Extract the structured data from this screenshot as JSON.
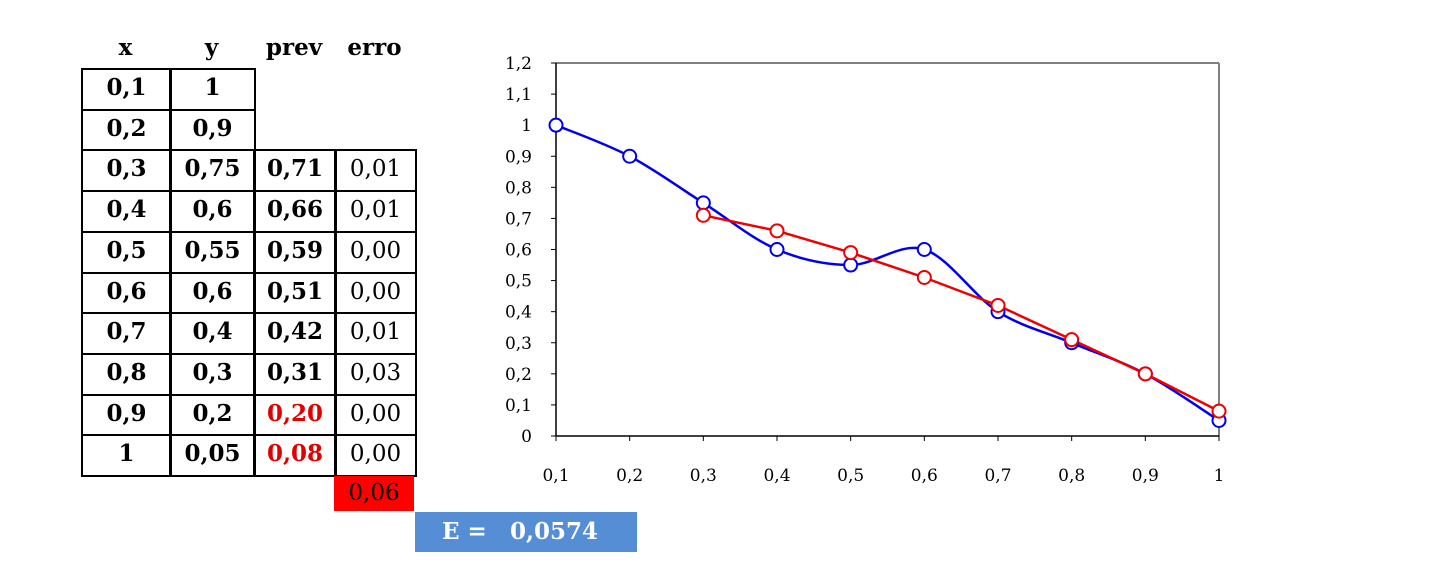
{
  "table": {
    "headers": [
      "x",
      "y",
      "prev",
      "erro"
    ],
    "rows": [
      {
        "x": "0,1",
        "y": "1",
        "prev": "",
        "erro": "",
        "prev_color": ""
      },
      {
        "x": "0,2",
        "y": "0,9",
        "prev": "",
        "erro": "",
        "prev_color": ""
      },
      {
        "x": "0,3",
        "y": "0,75",
        "prev": "0,71",
        "erro": "0,01",
        "prev_color": "#000000"
      },
      {
        "x": "0,4",
        "y": "0,6",
        "prev": "0,66",
        "erro": "0,01",
        "prev_color": "#000000"
      },
      {
        "x": "0,5",
        "y": "0,55",
        "prev": "0,59",
        "erro": "0,00",
        "prev_color": "#000000"
      },
      {
        "x": "0,6",
        "y": "0,6",
        "prev": "0,51",
        "erro": "0,00",
        "prev_color": "#000000"
      },
      {
        "x": "0,7",
        "y": "0,4",
        "prev": "0,42",
        "erro": "0,01",
        "prev_color": "#000000"
      },
      {
        "x": "0,8",
        "y": "0,3",
        "prev": "0,31",
        "erro": "0,03",
        "prev_color": "#000000"
      },
      {
        "x": "0,9",
        "y": "0,2",
        "prev": "0,20",
        "erro": "0,00",
        "prev_color": "#e00000"
      },
      {
        "x": "1",
        "y": "0,05",
        "prev": "0,08",
        "erro": "0,00",
        "prev_color": "#e00000"
      }
    ],
    "error_sum": "0,06",
    "error_sum_color": "#ff0000"
  },
  "result": {
    "label": "E =",
    "value": "0,0574",
    "color": "#558ed5"
  },
  "chart_data": {
    "type": "line",
    "x": [
      0.1,
      0.2,
      0.3,
      0.4,
      0.5,
      0.6,
      0.7,
      0.8,
      0.9,
      1
    ],
    "x_tick_labels": [
      "0,1",
      "0,2",
      "0,3",
      "0,4",
      "0,5",
      "0,6",
      "0,7",
      "0,8",
      "0,9",
      "1"
    ],
    "y_tick_labels": [
      "0",
      "0,1",
      "0,2",
      "0,3",
      "0,4",
      "0,5",
      "0,6",
      "0,7",
      "0,8",
      "0,9",
      "1",
      "1,1",
      "1,2"
    ],
    "ylim": [
      0,
      1.2
    ],
    "grid": false,
    "legend": "none",
    "series": [
      {
        "color": "#0000ee",
        "smooth": true,
        "values": [
          1,
          0.9,
          0.75,
          0.6,
          0.55,
          0.6,
          0.4,
          0.3,
          0.2,
          0.05
        ]
      },
      {
        "color": "#ee0000",
        "smooth": false,
        "values": [
          null,
          null,
          0.71,
          0.66,
          0.59,
          0.51,
          0.42,
          0.31,
          0.2,
          0.08
        ]
      }
    ]
  }
}
